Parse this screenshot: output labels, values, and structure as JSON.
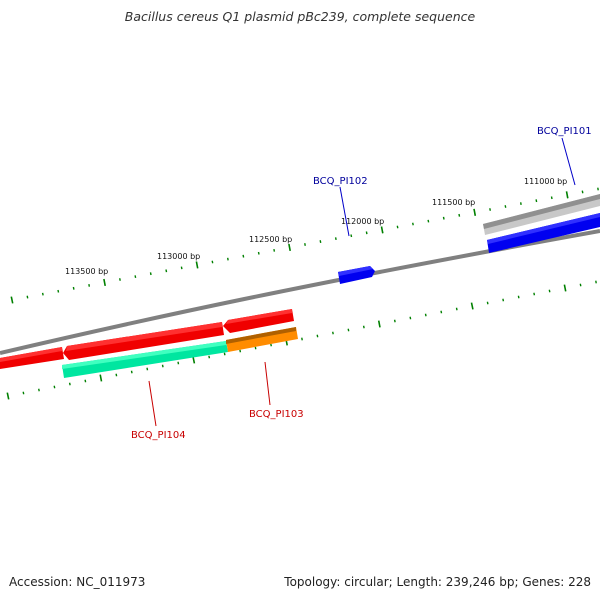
{
  "title": "Bacillus cereus Q1 plasmid pBc239, complete sequence",
  "footer": {
    "accession": "Accession: NC_011973",
    "summary": "Topology: circular; Length: 239,246 bp; Genes: 228"
  },
  "ticks": [
    {
      "label": "111000 bp"
    },
    {
      "label": "111500 bp"
    },
    {
      "label": "112000 bp"
    },
    {
      "label": "112500 bp"
    },
    {
      "label": "113000 bp"
    },
    {
      "label": "113500 bp"
    }
  ],
  "genes": [
    {
      "label": "BCQ_PI101",
      "color": "#00009c"
    },
    {
      "label": "BCQ_PI102",
      "color": "#00009c"
    },
    {
      "label": "BCQ_PI103",
      "color": "#c80000"
    },
    {
      "label": "BCQ_PI104",
      "color": "#c80000"
    }
  ],
  "colors": {
    "backbone": "#808080",
    "forward_gene": "#0000ff",
    "reverse_gene": "#ff0000",
    "gray_gene": "#b4b4b4",
    "orange_gene": "#ff8c00",
    "teal_gene": "#00e6a0",
    "tick": "#008000"
  }
}
